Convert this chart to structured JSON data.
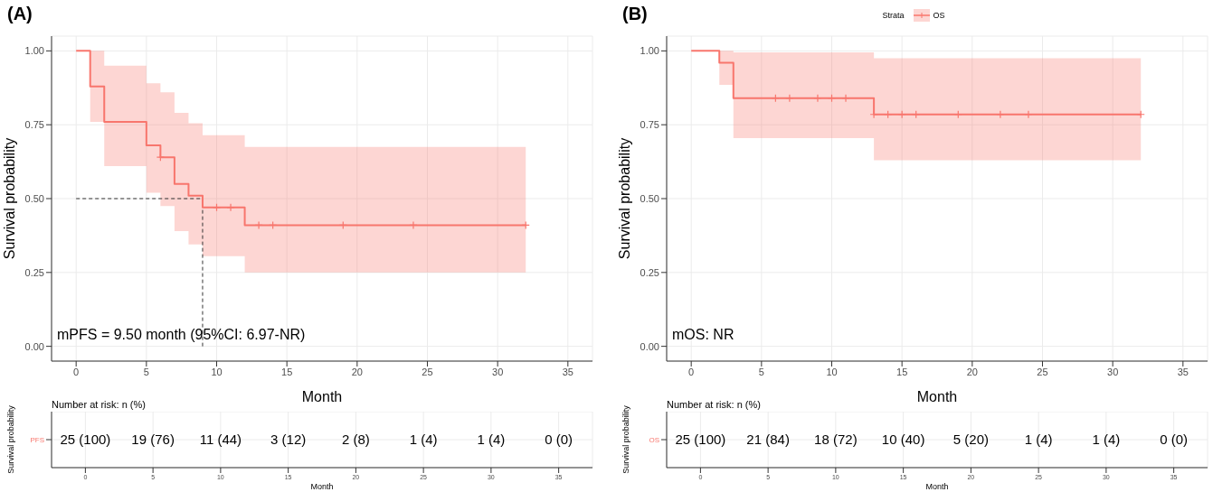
{
  "chart_data": [
    {
      "type": "step",
      "title": "(A)",
      "xlabel": "Month",
      "ylabel": "Survival probability",
      "xlim": [
        -1.75,
        36.75
      ],
      "xticks": [
        0,
        5,
        10,
        15,
        20,
        25,
        30,
        35
      ],
      "ylim": [
        -0.05,
        1.05
      ],
      "yticks": [
        {
          "value": 0,
          "label": "0.00"
        },
        {
          "value": 0.25,
          "label": "0.25"
        },
        {
          "value": 0.5,
          "label": "0.50"
        },
        {
          "value": 0.75,
          "label": "0.75"
        },
        {
          "value": 1,
          "label": "1.00"
        }
      ],
      "grid": true,
      "line_style": "solid",
      "series": [
        {
          "type": "step",
          "color": "#f8766d",
          "x": [
            0,
            1,
            2,
            5,
            6,
            7,
            8,
            9,
            12,
            32
          ],
          "values": [
            1,
            0.88,
            0.76,
            0.68,
            0.64,
            0.55,
            0.51,
            0.47,
            0.41,
            0.41
          ],
          "lower": [
            null,
            0.76,
            0.61,
            0.52,
            0.475,
            0.39,
            0.345,
            0.305,
            0.25,
            0.25
          ],
          "upper": [
            null,
            1,
            0.95,
            0.89,
            0.86,
            0.79,
            0.755,
            0.715,
            0.675,
            0.675
          ]
        },
        {
          "type": "scatter",
          "marker": "cross",
          "color": "#f8766d",
          "x": [
            6,
            10,
            11,
            13,
            14,
            19,
            24,
            32
          ],
          "values": [
            0.64,
            0.47,
            0.47,
            0.41,
            0.41,
            0.41,
            0.41,
            0.41
          ]
        }
      ],
      "ref_lines": [
        {
          "axis": "y",
          "value": 0.5,
          "line_style": "dashed",
          "color": "#333333"
        },
        {
          "axis": "x",
          "value": 9,
          "line_style": "dashed",
          "color": "#333333"
        }
      ],
      "annotations": [
        "mPFS = 9.50 month (95%CI: 6.97-NR)"
      ]
    },
    {
      "type": "step",
      "title": "(B)",
      "xlabel": "Month",
      "ylabel": "Survival probability",
      "legend": "top",
      "legend_title": "Strata",
      "xlim": [
        -1.75,
        36.75
      ],
      "xticks": [
        0,
        5,
        10,
        15,
        20,
        25,
        30,
        35
      ],
      "ylim": [
        -0.05,
        1.05
      ],
      "yticks": [
        {
          "value": 0,
          "label": "0.00"
        },
        {
          "value": 0.25,
          "label": "0.25"
        },
        {
          "value": 0.5,
          "label": "0.50"
        },
        {
          "value": 0.75,
          "label": "0.75"
        },
        {
          "value": 1,
          "label": "1.00"
        }
      ],
      "grid": true,
      "line_style": "solid",
      "series": [
        {
          "type": "step",
          "name": "OS",
          "color": "#f8766d",
          "x": [
            0,
            2,
            3,
            13,
            32
          ],
          "values": [
            1,
            0.96,
            0.84,
            0.785,
            0.785
          ],
          "lower": [
            null,
            0.885,
            0.705,
            0.63,
            0.63
          ],
          "upper": [
            null,
            1,
            0.995,
            0.975,
            0.975
          ]
        },
        {
          "type": "scatter",
          "marker": "cross",
          "color": "#f8766d",
          "x": [
            6,
            7,
            9,
            10,
            11,
            13,
            14,
            15,
            16,
            19,
            22,
            24,
            32
          ],
          "values": [
            0.84,
            0.84,
            0.84,
            0.84,
            0.84,
            0.785,
            0.785,
            0.785,
            0.785,
            0.785,
            0.785,
            0.785,
            0.785
          ]
        }
      ],
      "annotations": [
        "mOS: NR"
      ]
    },
    {
      "type": "heatmap",
      "title": "Number at risk: n (%)",
      "xlabel": "Month",
      "ylabel": "Survival probability",
      "categories": [
        "0",
        "5",
        "10",
        "15",
        "20",
        "25",
        "30",
        "35"
      ],
      "y_categories": [
        "PFS"
      ],
      "color": "#f8766d",
      "grid": true,
      "cells": [
        [
          null,
          null,
          null,
          null,
          null,
          null,
          null,
          null
        ]
      ],
      "cell_labels": [
        [
          "25 (100)",
          "19 (76)",
          "11 (44)",
          "3 (12)",
          "2 (8)",
          "1 (4)",
          "1 (4)",
          "0 (0)"
        ]
      ]
    },
    {
      "type": "heatmap",
      "title": "Number at risk: n (%)",
      "xlabel": "Month",
      "ylabel": "Survival probability",
      "categories": [
        "0",
        "5",
        "10",
        "15",
        "20",
        "25",
        "30",
        "35"
      ],
      "y_categories": [
        "OS"
      ],
      "color": "#f8766d",
      "grid": true,
      "cells": [
        [
          null,
          null,
          null,
          null,
          null,
          null,
          null,
          null
        ]
      ],
      "cell_labels": [
        [
          "25 (100)",
          "21 (84)",
          "18 (72)",
          "10 (40)",
          "5 (20)",
          "1 (4)",
          "1 (4)",
          "0 (0)"
        ]
      ]
    }
  ]
}
